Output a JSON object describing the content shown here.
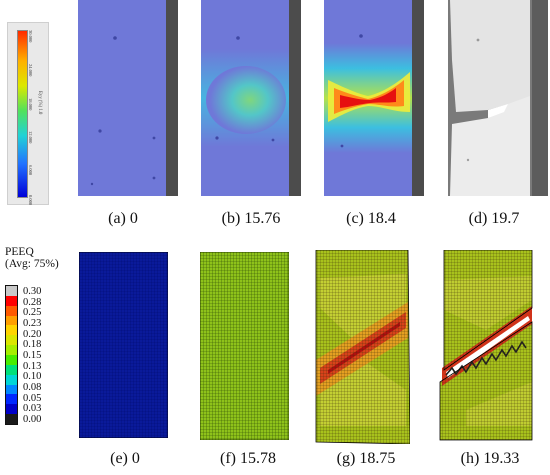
{
  "top_legend": {
    "ticks": [
      "30.000",
      "24.000",
      "18.000",
      "12.000",
      "6.000",
      "0.000"
    ],
    "label": "Eyy (%) 1.0"
  },
  "peeq_legend": {
    "title_line1": "PEEQ",
    "title_line2": "(Avg: 75%)",
    "values": [
      "0.30",
      "0.28",
      "0.25",
      "0.23",
      "0.20",
      "0.18",
      "0.15",
      "0.13",
      "0.10",
      "0.08",
      "0.05",
      "0.03",
      "0.00"
    ],
    "colors": [
      "#c9c9c9",
      "#ff0000",
      "#ff5a00",
      "#ff9f00",
      "#ffd400",
      "#dbe600",
      "#a6ee00",
      "#48ec00",
      "#00e07a",
      "#00d6d6",
      "#0088ff",
      "#0028ff",
      "#0000c8",
      "#1a1a1a"
    ]
  },
  "captions": {
    "a": "(a) 0",
    "b": "(b) 15.76",
    "c": "(c) 18.4",
    "d": "(d) 19.7",
    "e": "(e) 0",
    "f": "(f) 15.78",
    "g": "(g) 18.75",
    "h": "(h) 19.33"
  }
}
